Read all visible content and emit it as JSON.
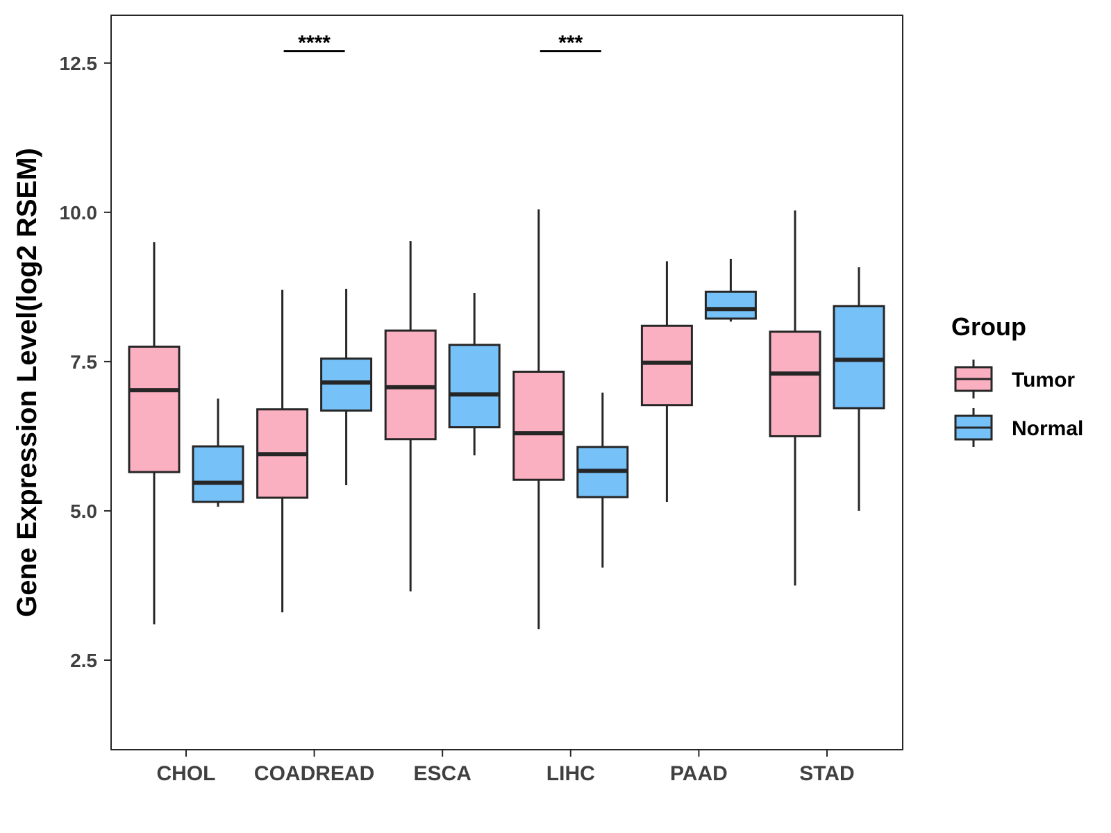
{
  "chart_data": {
    "type": "boxplot",
    "title": "",
    "xlabel": "",
    "ylabel": "Gene Expression Level(log2 RSEM)",
    "ylim": [
      1.0,
      13.3
    ],
    "yticks": [
      2.5,
      5.0,
      7.5,
      10.0,
      12.5
    ],
    "ytick_labels": [
      "2.5",
      "5.0",
      "7.5",
      "10.0",
      "12.5"
    ],
    "grid": false,
    "categories": [
      "CHOL",
      "COADREAD",
      "ESCA",
      "LIHC",
      "PAAD",
      "STAD"
    ],
    "legend": {
      "title": "Group",
      "position": "right"
    },
    "series": [
      {
        "name": "Tumor",
        "color": "#FBB0C1",
        "boxes": [
          {
            "whisker_low": 3.1,
            "q1": 5.65,
            "median": 7.02,
            "q3": 7.75,
            "whisker_high": 9.5
          },
          {
            "whisker_low": 3.3,
            "q1": 5.22,
            "median": 5.95,
            "q3": 6.7,
            "whisker_high": 8.7
          },
          {
            "whisker_low": 3.65,
            "q1": 6.2,
            "median": 7.07,
            "q3": 8.02,
            "whisker_high": 9.52
          },
          {
            "whisker_low": 3.02,
            "q1": 5.52,
            "median": 6.3,
            "q3": 7.33,
            "whisker_high": 10.05
          },
          {
            "whisker_low": 5.15,
            "q1": 6.77,
            "median": 7.48,
            "q3": 8.1,
            "whisker_high": 9.18
          },
          {
            "whisker_low": 3.75,
            "q1": 6.25,
            "median": 7.3,
            "q3": 8.0,
            "whisker_high": 10.03
          }
        ]
      },
      {
        "name": "Normal",
        "color": "#76C1F8",
        "boxes": [
          {
            "whisker_low": 5.07,
            "q1": 5.15,
            "median": 5.47,
            "q3": 6.08,
            "whisker_high": 6.88
          },
          {
            "whisker_low": 5.43,
            "q1": 6.68,
            "median": 7.15,
            "q3": 7.55,
            "whisker_high": 8.72
          },
          {
            "whisker_low": 5.93,
            "q1": 6.4,
            "median": 6.95,
            "q3": 7.78,
            "whisker_high": 8.65
          },
          {
            "whisker_low": 4.05,
            "q1": 5.23,
            "median": 5.67,
            "q3": 6.07,
            "whisker_high": 6.98
          },
          {
            "whisker_low": 8.17,
            "q1": 8.22,
            "median": 8.38,
            "q3": 8.67,
            "whisker_high": 9.22
          },
          {
            "whisker_low": 5.0,
            "q1": 6.72,
            "median": 7.53,
            "q3": 8.43,
            "whisker_high": 9.08
          }
        ]
      }
    ],
    "annotations": [
      {
        "category": "COADREAD",
        "label": "****",
        "y": 12.7
      },
      {
        "category": "LIHC",
        "label": "***",
        "y": 12.7
      }
    ]
  },
  "colors": {
    "tumor": "#FBB0C1",
    "normal": "#76C1F8",
    "outline": "#262626",
    "axis": "#262626"
  }
}
